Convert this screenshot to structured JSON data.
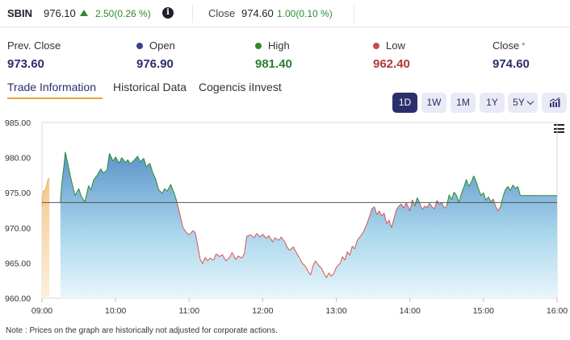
{
  "ticker": {
    "symbol": "SBIN",
    "price": "976.10",
    "change": "2.50(0.26 %)",
    "info_icon": "info-icon",
    "close_label": "Close",
    "close_value": "974.60",
    "close_change": "1.00(0.10 %)"
  },
  "stats": {
    "prev_close": {
      "label": "Prev. Close",
      "value": "973.60"
    },
    "open": {
      "label": "Open",
      "value": "976.90"
    },
    "high": {
      "label": "High",
      "value": "981.40"
    },
    "low": {
      "label": "Low",
      "value": "962.40"
    },
    "close": {
      "label": "Close",
      "value": "974.60",
      "marker": "*"
    }
  },
  "tabs": [
    "Trade Information",
    "Historical Data",
    "Cogencis iInvest"
  ],
  "ranges": [
    "1D",
    "1W",
    "1M",
    "1Y",
    "5Y"
  ],
  "active_range": "1D",
  "note": "Note : Prices on the graph are historically not adjusted for corporate actions.",
  "colors": {
    "accent": "#2b2f6b",
    "up": "#2e8b2e",
    "down": "#d9534f",
    "open_dot": "#3b3f8f",
    "high_dot": "#2e8b2e",
    "low_dot": "#c0504d",
    "tab_underline": "#e8a33a"
  },
  "chart_data": {
    "type": "area",
    "title": "",
    "xlabel": "",
    "ylabel": "",
    "xlim": [
      "09:00",
      "16:00"
    ],
    "ylim": [
      960,
      985
    ],
    "yticks": [
      "960.00",
      "965.00",
      "970.00",
      "975.00",
      "980.00",
      "985.00"
    ],
    "xticks": [
      "09:00",
      "10:00",
      "11:00",
      "12:00",
      "13:00",
      "14:00",
      "15:00",
      "16:00"
    ],
    "baseline": 973.6,
    "premarket": [
      {
        "t": "09:00",
        "v": 973.0
      },
      {
        "t": "09:01",
        "v": 975.2
      },
      {
        "t": "09:02",
        "v": 975.3
      },
      {
        "t": "09:03",
        "v": 975.5
      },
      {
        "t": "09:05",
        "v": 977.0
      },
      {
        "t": "09:06",
        "v": 977.0
      }
    ],
    "series": [
      {
        "t": "09:15",
        "v": 973.6
      },
      {
        "t": "09:16",
        "v": 976.0
      },
      {
        "t": "09:18",
        "v": 979.0
      },
      {
        "t": "09:19",
        "v": 980.8
      },
      {
        "t": "09:21",
        "v": 979.2
      },
      {
        "t": "09:23",
        "v": 977.5
      },
      {
        "t": "09:25",
        "v": 976.0
      },
      {
        "t": "09:27",
        "v": 974.6
      },
      {
        "t": "09:30",
        "v": 975.6
      },
      {
        "t": "09:32",
        "v": 974.5
      },
      {
        "t": "09:35",
        "v": 973.7
      },
      {
        "t": "09:38",
        "v": 976.0
      },
      {
        "t": "09:40",
        "v": 975.4
      },
      {
        "t": "09:42",
        "v": 976.8
      },
      {
        "t": "09:45",
        "v": 977.5
      },
      {
        "t": "09:48",
        "v": 978.4
      },
      {
        "t": "09:50",
        "v": 977.8
      },
      {
        "t": "09:53",
        "v": 978.2
      },
      {
        "t": "09:55",
        "v": 980.6
      },
      {
        "t": "09:58",
        "v": 979.5
      },
      {
        "t": "10:00",
        "v": 980.1
      },
      {
        "t": "10:03",
        "v": 979.2
      },
      {
        "t": "10:05",
        "v": 980.0
      },
      {
        "t": "10:08",
        "v": 979.3
      },
      {
        "t": "10:10",
        "v": 979.7
      },
      {
        "t": "10:12",
        "v": 979.1
      },
      {
        "t": "10:15",
        "v": 979.6
      },
      {
        "t": "10:18",
        "v": 980.2
      },
      {
        "t": "10:20",
        "v": 979.4
      },
      {
        "t": "10:23",
        "v": 979.9
      },
      {
        "t": "10:25",
        "v": 978.7
      },
      {
        "t": "10:28",
        "v": 979.2
      },
      {
        "t": "10:30",
        "v": 978.0
      },
      {
        "t": "10:33",
        "v": 976.8
      },
      {
        "t": "10:35",
        "v": 975.5
      },
      {
        "t": "10:38",
        "v": 974.9
      },
      {
        "t": "10:40",
        "v": 975.6
      },
      {
        "t": "10:42",
        "v": 975.2
      },
      {
        "t": "10:45",
        "v": 976.2
      },
      {
        "t": "10:48",
        "v": 974.8
      },
      {
        "t": "10:50",
        "v": 973.7
      },
      {
        "t": "10:53",
        "v": 971.5
      },
      {
        "t": "10:55",
        "v": 970.0
      },
      {
        "t": "10:58",
        "v": 969.3
      },
      {
        "t": "11:00",
        "v": 969.0
      },
      {
        "t": "11:03",
        "v": 969.6
      },
      {
        "t": "11:05",
        "v": 969.3
      },
      {
        "t": "11:07",
        "v": 967.5
      },
      {
        "t": "11:09",
        "v": 965.5
      },
      {
        "t": "11:11",
        "v": 964.9
      },
      {
        "t": "11:13",
        "v": 965.8
      },
      {
        "t": "11:15",
        "v": 965.3
      },
      {
        "t": "11:17",
        "v": 965.7
      },
      {
        "t": "11:20",
        "v": 965.4
      },
      {
        "t": "11:22",
        "v": 966.3
      },
      {
        "t": "11:25",
        "v": 965.9
      },
      {
        "t": "11:27",
        "v": 966.2
      },
      {
        "t": "11:30",
        "v": 965.3
      },
      {
        "t": "11:33",
        "v": 965.8
      },
      {
        "t": "11:35",
        "v": 966.5
      },
      {
        "t": "11:38",
        "v": 965.5
      },
      {
        "t": "11:40",
        "v": 966.0
      },
      {
        "t": "11:43",
        "v": 965.7
      },
      {
        "t": "11:45",
        "v": 966.3
      },
      {
        "t": "11:47",
        "v": 968.8
      },
      {
        "t": "11:50",
        "v": 969.0
      },
      {
        "t": "11:53",
        "v": 968.6
      },
      {
        "t": "11:55",
        "v": 969.2
      },
      {
        "t": "11:58",
        "v": 968.7
      },
      {
        "t": "12:00",
        "v": 969.1
      },
      {
        "t": "12:03",
        "v": 968.5
      },
      {
        "t": "12:05",
        "v": 968.9
      },
      {
        "t": "12:08",
        "v": 968.0
      },
      {
        "t": "12:10",
        "v": 968.6
      },
      {
        "t": "12:13",
        "v": 968.2
      },
      {
        "t": "12:15",
        "v": 968.7
      },
      {
        "t": "12:18",
        "v": 968.0
      },
      {
        "t": "12:20",
        "v": 967.2
      },
      {
        "t": "12:22",
        "v": 966.8
      },
      {
        "t": "12:25",
        "v": 967.3
      },
      {
        "t": "12:27",
        "v": 966.6
      },
      {
        "t": "12:30",
        "v": 965.7
      },
      {
        "t": "12:32",
        "v": 965.0
      },
      {
        "t": "12:35",
        "v": 964.5
      },
      {
        "t": "12:37",
        "v": 963.8
      },
      {
        "t": "12:39",
        "v": 963.3
      },
      {
        "t": "12:41",
        "v": 964.6
      },
      {
        "t": "12:43",
        "v": 965.3
      },
      {
        "t": "12:45",
        "v": 964.8
      },
      {
        "t": "12:48",
        "v": 964.2
      },
      {
        "t": "12:50",
        "v": 963.5
      },
      {
        "t": "12:52",
        "v": 962.9
      },
      {
        "t": "12:54",
        "v": 963.6
      },
      {
        "t": "12:56",
        "v": 963.1
      },
      {
        "t": "12:58",
        "v": 963.5
      },
      {
        "t": "13:00",
        "v": 964.4
      },
      {
        "t": "13:03",
        "v": 964.9
      },
      {
        "t": "13:05",
        "v": 965.9
      },
      {
        "t": "13:07",
        "v": 965.4
      },
      {
        "t": "13:09",
        "v": 966.6
      },
      {
        "t": "13:11",
        "v": 966.1
      },
      {
        "t": "13:13",
        "v": 967.4
      },
      {
        "t": "13:15",
        "v": 967.0
      },
      {
        "t": "13:17",
        "v": 968.2
      },
      {
        "t": "13:20",
        "v": 968.9
      },
      {
        "t": "13:22",
        "v": 969.4
      },
      {
        "t": "13:25",
        "v": 970.6
      },
      {
        "t": "13:27",
        "v": 971.6
      },
      {
        "t": "13:29",
        "v": 972.7
      },
      {
        "t": "13:31",
        "v": 973.0
      },
      {
        "t": "13:33",
        "v": 971.9
      },
      {
        "t": "13:35",
        "v": 972.4
      },
      {
        "t": "13:37",
        "v": 971.7
      },
      {
        "t": "13:39",
        "v": 972.1
      },
      {
        "t": "13:41",
        "v": 970.6
      },
      {
        "t": "13:43",
        "v": 971.1
      },
      {
        "t": "13:45",
        "v": 970.0
      },
      {
        "t": "13:47",
        "v": 971.3
      },
      {
        "t": "13:49",
        "v": 972.6
      },
      {
        "t": "13:51",
        "v": 973.1
      },
      {
        "t": "13:53",
        "v": 973.4
      },
      {
        "t": "13:55",
        "v": 972.8
      },
      {
        "t": "13:57",
        "v": 973.6
      },
      {
        "t": "14:00",
        "v": 972.4
      },
      {
        "t": "14:02",
        "v": 974.0
      },
      {
        "t": "14:04",
        "v": 973.1
      },
      {
        "t": "14:06",
        "v": 974.3
      },
      {
        "t": "14:08",
        "v": 973.5
      },
      {
        "t": "14:10",
        "v": 972.6
      },
      {
        "t": "14:12",
        "v": 973.1
      },
      {
        "t": "14:14",
        "v": 972.9
      },
      {
        "t": "14:16",
        "v": 973.5
      },
      {
        "t": "14:18",
        "v": 973.0
      },
      {
        "t": "14:20",
        "v": 972.7
      },
      {
        "t": "14:22",
        "v": 973.9
      },
      {
        "t": "14:24",
        "v": 973.3
      },
      {
        "t": "14:26",
        "v": 973.6
      },
      {
        "t": "14:28",
        "v": 972.8
      },
      {
        "t": "14:30",
        "v": 973.1
      },
      {
        "t": "14:32",
        "v": 974.7
      },
      {
        "t": "14:34",
        "v": 974.0
      },
      {
        "t": "14:36",
        "v": 975.1
      },
      {
        "t": "14:38",
        "v": 974.6
      },
      {
        "t": "14:40",
        "v": 973.6
      },
      {
        "t": "14:42",
        "v": 974.9
      },
      {
        "t": "14:44",
        "v": 975.8
      },
      {
        "t": "14:46",
        "v": 976.9
      },
      {
        "t": "14:48",
        "v": 975.9
      },
      {
        "t": "14:50",
        "v": 976.5
      },
      {
        "t": "14:52",
        "v": 977.4
      },
      {
        "t": "14:54",
        "v": 976.6
      },
      {
        "t": "14:56",
        "v": 975.5
      },
      {
        "t": "14:58",
        "v": 974.6
      },
      {
        "t": "15:00",
        "v": 975.0
      },
      {
        "t": "15:02",
        "v": 973.9
      },
      {
        "t": "15:04",
        "v": 974.4
      },
      {
        "t": "15:06",
        "v": 973.7
      },
      {
        "t": "15:08",
        "v": 974.1
      },
      {
        "t": "15:10",
        "v": 973.0
      },
      {
        "t": "15:12",
        "v": 972.4
      },
      {
        "t": "15:14",
        "v": 973.1
      },
      {
        "t": "15:16",
        "v": 974.5
      },
      {
        "t": "15:18",
        "v": 975.5
      },
      {
        "t": "15:20",
        "v": 975.9
      },
      {
        "t": "15:22",
        "v": 975.3
      },
      {
        "t": "15:24",
        "v": 976.1
      },
      {
        "t": "15:26",
        "v": 975.6
      },
      {
        "t": "15:28",
        "v": 975.9
      },
      {
        "t": "15:30",
        "v": 974.6
      },
      {
        "t": "15:40",
        "v": 974.6
      },
      {
        "t": "16:00",
        "v": 974.6
      }
    ]
  }
}
